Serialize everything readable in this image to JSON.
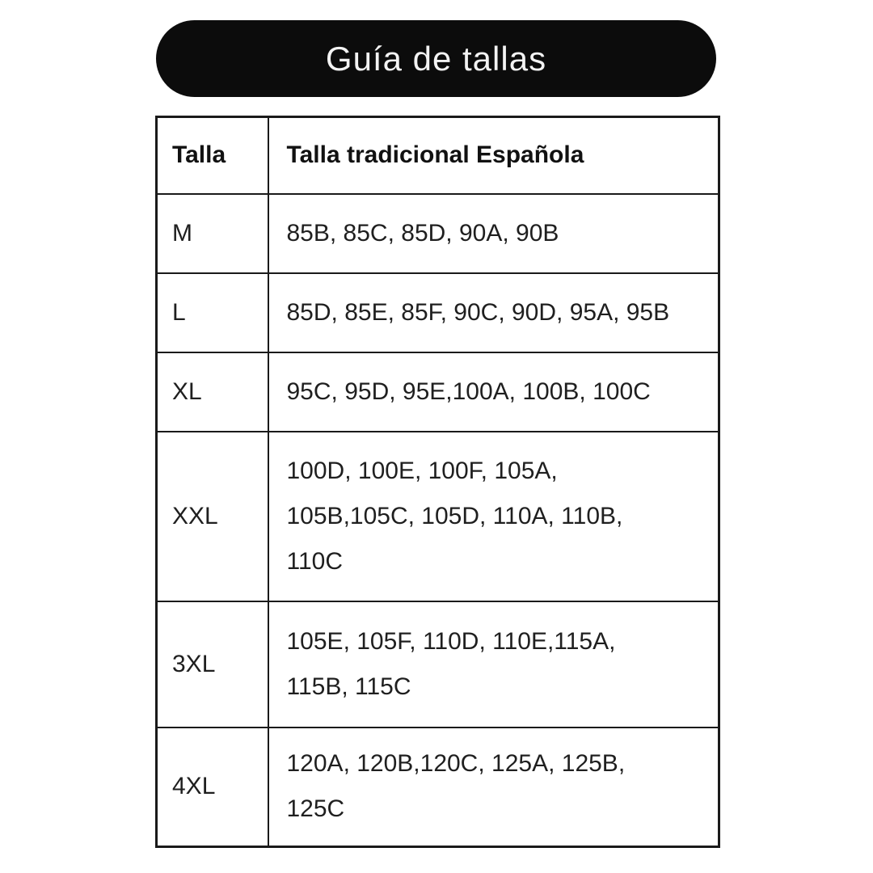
{
  "title": {
    "text": "Guía de tallas"
  },
  "colors": {
    "background": "#ffffff",
    "pill_bg": "#0c0c0c",
    "pill_text": "#f3f3f3",
    "border": "#1a1a1a",
    "body_text": "#1f1f1f"
  },
  "table": {
    "headers": [
      "Talla",
      "Talla tradicional Española"
    ],
    "rows": [
      {
        "size": "M",
        "traditional": "85B, 85C, 85D, 90A, 90B"
      },
      {
        "size": "L",
        "traditional": "85D, 85E, 85F, 90C, 90D, 95A, 95B"
      },
      {
        "size": "XL",
        "traditional": "95C, 95D, 95E,100A, 100B, 100C"
      },
      {
        "size": "XXL",
        "traditional": "100D, 100E, 100F, 105A, 105B,105C, 105D, 110A, 110B, 110C"
      },
      {
        "size": "3XL",
        "traditional": "105E, 105F, 110D, 110E,115A, 115B, 115C"
      },
      {
        "size": "4XL",
        "traditional": "120A, 120B,120C, 125A, 125B, 125C"
      }
    ]
  }
}
